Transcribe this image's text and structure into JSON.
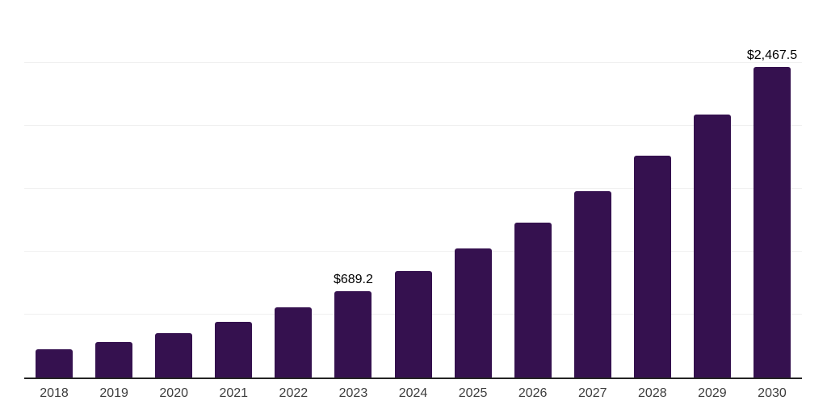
{
  "chart_data": {
    "type": "bar",
    "title": "",
    "xlabel": "",
    "ylabel": "",
    "categories": [
      "2018",
      "2019",
      "2020",
      "2021",
      "2022",
      "2023",
      "2024",
      "2025",
      "2026",
      "2027",
      "2028",
      "2029",
      "2030"
    ],
    "values": [
      225,
      285,
      355,
      445,
      560,
      689.2,
      845,
      1025,
      1230,
      1480,
      1765,
      2090,
      2467.5
    ],
    "data_labels": [
      "",
      "",
      "",
      "",
      "",
      "$689.2",
      "",
      "",
      "",
      "",
      "",
      "",
      "$2,467.5"
    ],
    "labeled_values_note": "only 2023 and 2030 carry visible data labels; other values estimated from gridlines",
    "ylim": [
      0,
      3000
    ],
    "grid_step": 500,
    "grid": "horizontal",
    "y_tick_labels_visible": false,
    "legend_position": "none",
    "colors": {
      "bar": "#35114F",
      "axis_line": "#242424",
      "gridline": "#f0f0f0",
      "tick_label": "#3d3d3d",
      "data_label": "#000000",
      "background": "#ffffff"
    }
  }
}
